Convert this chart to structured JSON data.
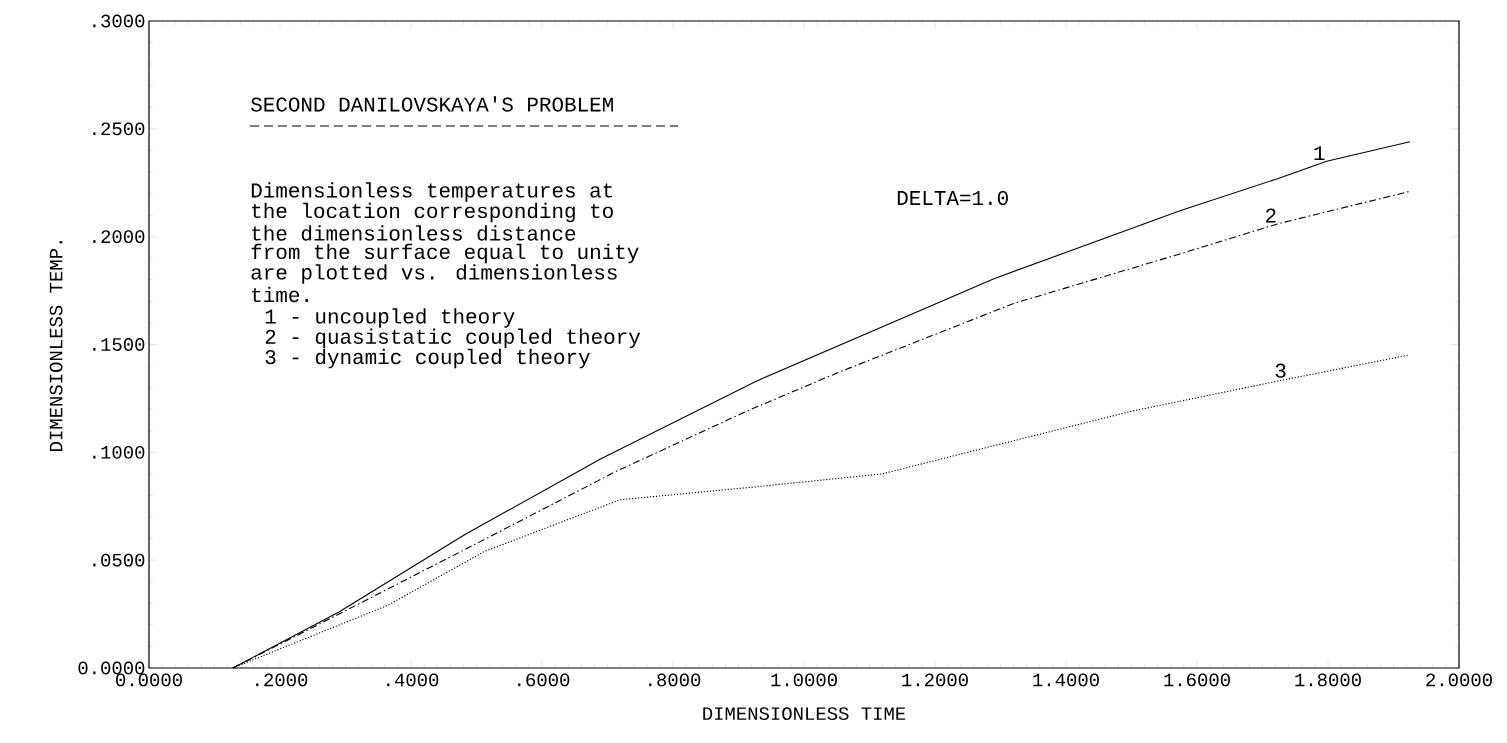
{
  "chart_data": {
    "type": "line",
    "title": "SECOND DANILOVSKAYA'S PROBLEM",
    "xlabel": "DIMENSIONLESS TIME",
    "ylabel": "DIMENSIONLESS TEMP.",
    "xlim": [
      0,
      2
    ],
    "ylim": [
      0,
      0.3
    ],
    "xticks": [
      {
        "value": 0,
        "label": "0.0000"
      },
      {
        "value": 0.2,
        "label": ".2000"
      },
      {
        "value": 0.4,
        "label": ".4000"
      },
      {
        "value": 0.6,
        "label": ".6000"
      },
      {
        "value": 0.8,
        "label": ".8000"
      },
      {
        "value": 1.0,
        "label": "1.0000"
      },
      {
        "value": 1.2,
        "label": "1.2000"
      },
      {
        "value": 1.4,
        "label": "1.4000"
      },
      {
        "value": 1.6,
        "label": "1.6000"
      },
      {
        "value": 1.8,
        "label": "1.8000"
      },
      {
        "value": 2.0,
        "label": "2.0000"
      }
    ],
    "yticks": [
      {
        "value": 0,
        "label": "0.0000"
      },
      {
        "value": 0.05,
        "label": ".0500"
      },
      {
        "value": 0.1,
        "label": ".1000"
      },
      {
        "value": 0.15,
        "label": ".1500"
      },
      {
        "value": 0.2,
        "label": ".2000"
      },
      {
        "value": 0.25,
        "label": ".2500"
      },
      {
        "value": 0.3,
        "label": ".3000"
      }
    ],
    "series": [
      {
        "name": "1",
        "color": "#000000",
        "line_style": "solid",
        "x": [
          0.128,
          0.29,
          0.483,
          0.69,
          0.927,
          1.29,
          1.574,
          1.724,
          1.798,
          1.925
        ],
        "values": [
          0,
          0.026,
          0.062,
          0.097,
          0.133,
          0.1805,
          0.212,
          0.227,
          0.235,
          0.244
        ]
      },
      {
        "name": "2",
        "color": "#000000",
        "line_style": "dashed",
        "x": [
          0.128,
          0.29,
          0.512,
          0.712,
          0.912,
          1.052,
          1.32,
          1.574,
          1.724,
          1.925
        ],
        "values": [
          0,
          0.025,
          0.0596,
          0.091,
          0.119,
          0.137,
          0.169,
          0.192,
          0.206,
          0.221
        ]
      },
      {
        "name": "3",
        "color": "#000000",
        "line_style": "dotted",
        "x": [
          0.128,
          0.364,
          0.512,
          0.719,
          0.927,
          1.119,
          1.276,
          1.499,
          1.739,
          1.922
        ],
        "values": [
          0,
          0.029,
          0.054,
          0.078,
          0.084,
          0.09,
          0.102,
          0.119,
          0.134,
          0.145
        ]
      }
    ],
    "annotations": [
      "Dimensionless temperatures at",
      "the location corresponding to",
      "the dimensionless distance",
      "from the surface equal to unity",
      "are plotted vs. dimensionless",
      "time.",
      "1 - uncoupled theory",
      "2 - quasistatic coupled theory",
      "3 - dynamic coupled theory",
      "DELTA=1.0"
    ]
  }
}
